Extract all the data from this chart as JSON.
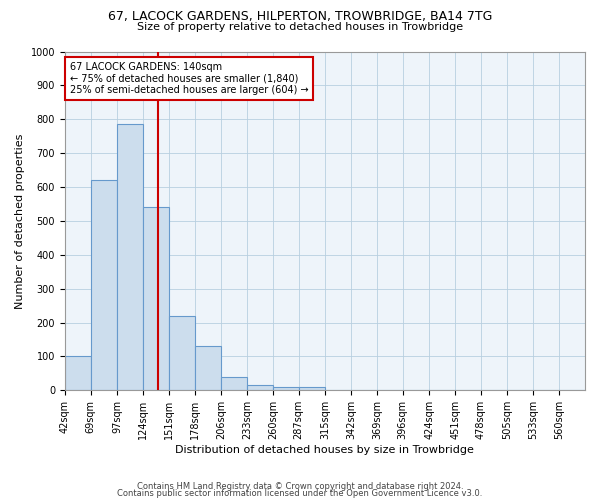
{
  "title": "67, LACOCK GARDENS, HILPERTON, TROWBRIDGE, BA14 7TG",
  "subtitle": "Size of property relative to detached houses in Trowbridge",
  "xlabel": "Distribution of detached houses by size in Trowbridge",
  "ylabel": "Number of detached properties",
  "footer_line1": "Contains HM Land Registry data © Crown copyright and database right 2024.",
  "footer_line2": "Contains public sector information licensed under the Open Government Licence v3.0.",
  "annotation_title": "67 LACOCK GARDENS: 140sqm",
  "annotation_line2": "← 75% of detached houses are smaller (1,840)",
  "annotation_line3": "25% of semi-detached houses are larger (604) →",
  "bar_color": "#ccdded",
  "bar_edge_color": "#6699cc",
  "vline_color": "#cc0000",
  "vline_x": 140,
  "ylim": [
    0,
    1000
  ],
  "yticks": [
    0,
    100,
    200,
    300,
    400,
    500,
    600,
    700,
    800,
    900,
    1000
  ],
  "bin_edges": [
    42,
    69,
    97,
    124,
    151,
    178,
    206,
    233,
    260,
    287,
    315,
    342,
    369,
    396,
    424,
    451,
    478,
    505,
    533,
    560,
    587
  ],
  "bar_heights": [
    100,
    620,
    785,
    540,
    220,
    130,
    40,
    15,
    10,
    10,
    0,
    0,
    0,
    0,
    0,
    0,
    0,
    0,
    0,
    0
  ],
  "title_fontsize": 9,
  "subtitle_fontsize": 8,
  "ylabel_fontsize": 8,
  "xlabel_fontsize": 8,
  "tick_fontsize": 7,
  "footer_fontsize": 6,
  "annot_fontsize": 7
}
